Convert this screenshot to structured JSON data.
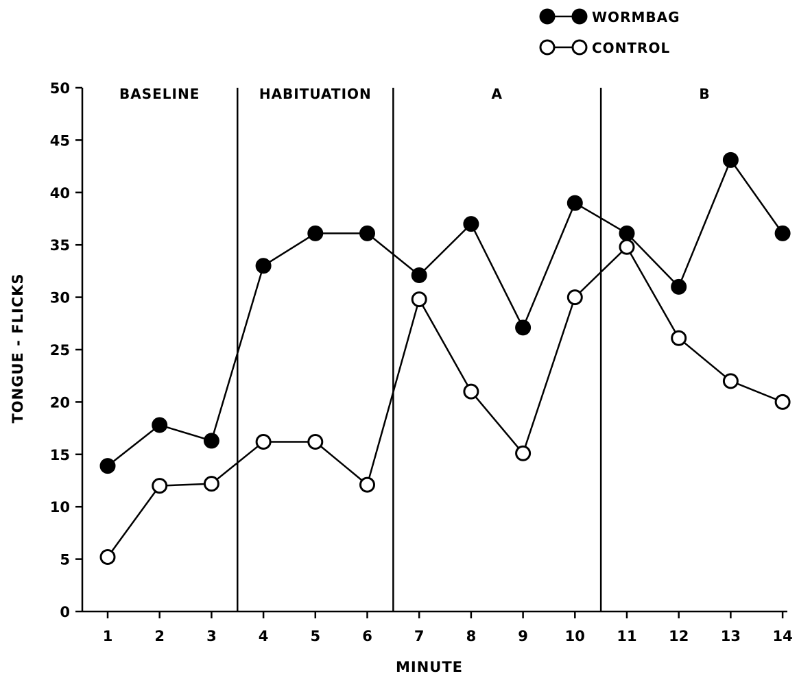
{
  "chart_data": {
    "type": "line",
    "title": "",
    "xlabel": "MINUTE",
    "ylabel": "TONGUE - FLICKS",
    "x": [
      1,
      2,
      3,
      4,
      5,
      6,
      7,
      8,
      9,
      10,
      11,
      12,
      13,
      14
    ],
    "xtick_labels": [
      "1",
      "2",
      "3",
      "4",
      "5",
      "6",
      "7",
      "8",
      "9",
      "10",
      "11",
      "12",
      "13",
      "14"
    ],
    "ylim": [
      0,
      50
    ],
    "yticks": [
      0,
      5,
      10,
      15,
      20,
      25,
      30,
      35,
      40,
      45,
      50
    ],
    "grid": false,
    "legend_position": "top-right",
    "series": [
      {
        "name": "WORMBAG",
        "marker": "filled-circle",
        "values": [
          13.9,
          17.8,
          16.3,
          33,
          36.1,
          36.1,
          32.1,
          37,
          27.1,
          39,
          36.1,
          31,
          43.1,
          36.1
        ]
      },
      {
        "name": "CONTROL",
        "marker": "open-circle",
        "values": [
          5.2,
          12,
          12.2,
          16.2,
          16.2,
          12.1,
          29.8,
          21,
          15.1,
          30,
          34.8,
          26.1,
          22,
          20
        ]
      }
    ],
    "phases": [
      {
        "label": "BASELINE",
        "start": 0.5,
        "end": 3.5
      },
      {
        "label": "HABITUATION",
        "start": 3.5,
        "end": 6.5
      },
      {
        "label": "A",
        "start": 6.5,
        "end": 10.5
      },
      {
        "label": "B",
        "start": 10.5,
        "end": 14.5
      }
    ],
    "phase_dividers": [
      3.5,
      6.5,
      10.5
    ],
    "colors": {
      "line": "#000000",
      "background": "#ffffff"
    }
  }
}
